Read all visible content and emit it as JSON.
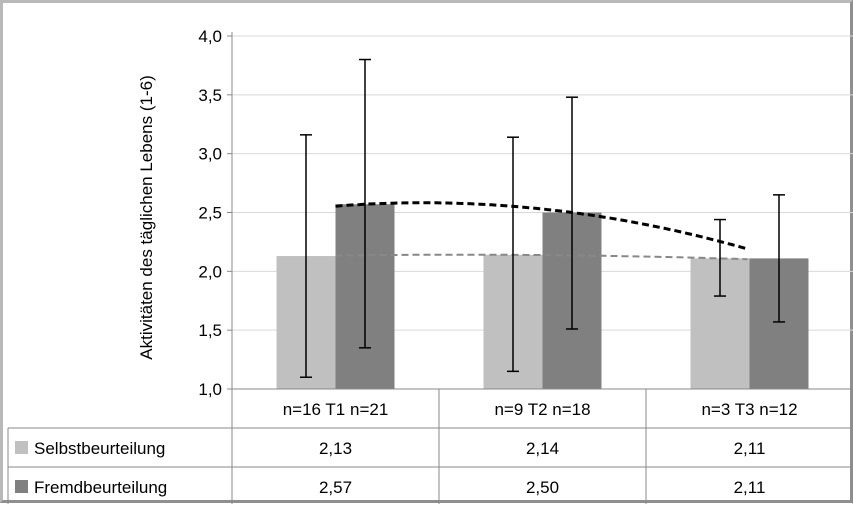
{
  "chart_data": {
    "type": "bar",
    "ylabel": "Aktivitäten des täglichen Lebens (1-6)",
    "ylim": [
      1.0,
      4.0
    ],
    "yticks": [
      "1,0",
      "1,5",
      "2,0",
      "2,5",
      "3,0",
      "3,5",
      "4,0"
    ],
    "ytick_values": [
      1.0,
      1.5,
      2.0,
      2.5,
      3.0,
      3.5,
      4.0
    ],
    "grid": true,
    "categories": [
      "n=16 T1 n=21",
      "n=9 T2 n=18",
      "n=3 T3 n=12"
    ],
    "series": [
      {
        "name": "Selbstbeurteilung",
        "color": "#c0c0c0",
        "values": [
          2.13,
          2.14,
          2.11
        ],
        "value_labels": [
          "2,13",
          "2,14",
          "2,11"
        ],
        "error_low": [
          1.1,
          1.15,
          1.79
        ],
        "error_high": [
          3.16,
          3.14,
          2.44
        ]
      },
      {
        "name": "Fremdbeurteilung",
        "color": "#808080",
        "values": [
          2.57,
          2.5,
          2.11
        ],
        "value_labels": [
          "2,57",
          "2,50",
          "2,11"
        ],
        "error_low": [
          1.35,
          1.51,
          1.57
        ],
        "error_high": [
          3.8,
          3.48,
          2.65
        ]
      }
    ],
    "trendlines": [
      {
        "series": "Selbstbeurteilung",
        "style": "dashed",
        "color": "#888888"
      },
      {
        "series": "Fremdbeurteilung",
        "style": "dashed",
        "color": "#000000"
      }
    ],
    "legend": "data table below chart"
  }
}
